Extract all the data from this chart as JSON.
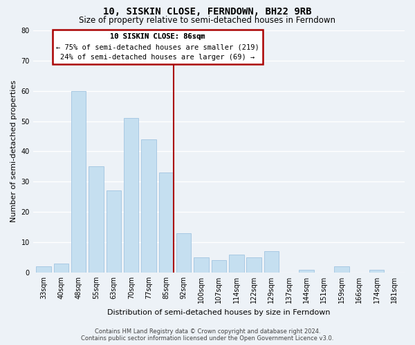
{
  "title": "10, SISKIN CLOSE, FERNDOWN, BH22 9RB",
  "subtitle": "Size of property relative to semi-detached houses in Ferndown",
  "xlabel": "Distribution of semi-detached houses by size in Ferndown",
  "ylabel": "Number of semi-detached properties",
  "footer_line1": "Contains HM Land Registry data © Crown copyright and database right 2024.",
  "footer_line2": "Contains public sector information licensed under the Open Government Licence v3.0.",
  "categories": [
    "33sqm",
    "40sqm",
    "48sqm",
    "55sqm",
    "63sqm",
    "70sqm",
    "77sqm",
    "85sqm",
    "92sqm",
    "100sqm",
    "107sqm",
    "114sqm",
    "122sqm",
    "129sqm",
    "137sqm",
    "144sqm",
    "151sqm",
    "159sqm",
    "166sqm",
    "174sqm",
    "181sqm"
  ],
  "values": [
    2,
    3,
    60,
    35,
    27,
    51,
    44,
    33,
    13,
    5,
    4,
    6,
    5,
    7,
    0,
    1,
    0,
    2,
    0,
    1,
    0
  ],
  "bar_color": "#c5dff0",
  "bar_edge_color": "#a0c4e0",
  "vline_index": 7,
  "vline_color": "#aa0000",
  "annotation_title": "10 SISKIN CLOSE: 86sqm",
  "annotation_line1": "← 75% of semi-detached houses are smaller (219)",
  "annotation_line2": "24% of semi-detached houses are larger (69) →",
  "annotation_box_color": "#ffffff",
  "annotation_box_edge": "#aa0000",
  "ylim": [
    0,
    80
  ],
  "yticks": [
    0,
    10,
    20,
    30,
    40,
    50,
    60,
    70,
    80
  ],
  "background_color": "#edf2f7",
  "grid_color": "#ffffff",
  "title_fontsize": 10,
  "subtitle_fontsize": 8.5,
  "axis_label_fontsize": 8,
  "tick_fontsize": 7,
  "footer_fontsize": 6
}
